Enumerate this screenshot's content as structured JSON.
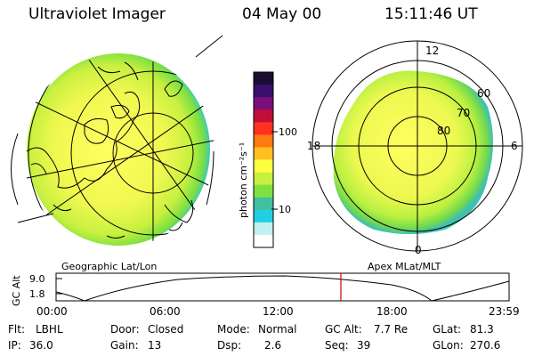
{
  "header": {
    "title": "Ultraviolet Imager",
    "date": "04 May 00",
    "time": "15:11:46 UT"
  },
  "colorbar": {
    "unit_label": "photon cm⁻²s⁻¹",
    "tick_labels": [
      "100",
      "10"
    ],
    "colors": [
      "#1a0f33",
      "#3a0f6b",
      "#7a0f7a",
      "#c0103a",
      "#ff3020",
      "#ff7a10",
      "#ffc020",
      "#ffff40",
      "#c8f040",
      "#80e040",
      "#40c0a0",
      "#20d0e0",
      "#c0f0f0",
      "#ffffff"
    ]
  },
  "left_map": {
    "caption": "Geographic Lat/Lon"
  },
  "right_map": {
    "caption": "Apex MLat/MLT",
    "mlt_labels": {
      "top": "12",
      "left": "18",
      "right": "6",
      "bottom": "0"
    },
    "lat_labels": [
      "60",
      "70",
      "80"
    ]
  },
  "altitude_plot": {
    "ylabel": "GC Alt",
    "yticks": [
      "9.0",
      "1.8"
    ],
    "xticks": [
      "00:00",
      "06:00",
      "12:00",
      "18:00",
      "23:59"
    ],
    "current_marker_time": "15:11:46"
  },
  "info": {
    "flt_label": "Flt:",
    "flt_value": "LBHL",
    "ip_label": "IP:",
    "ip_value": "36.0",
    "door_label": "Door:",
    "door_value": "Closed",
    "gain_label": "Gain:",
    "gain_value": "13",
    "mode_label": "Mode:",
    "mode_value": "Normal",
    "dsp_label": "Dsp:",
    "dsp_value": "2.6",
    "gcalt_label": "GC Alt:",
    "gcalt_value": "7.7 Re",
    "seq_label": "Seq:",
    "seq_value": "39",
    "glat_label": "GLat:",
    "glat_value": "81.3",
    "glon_label": "GLon:",
    "glon_value": "270.6"
  }
}
